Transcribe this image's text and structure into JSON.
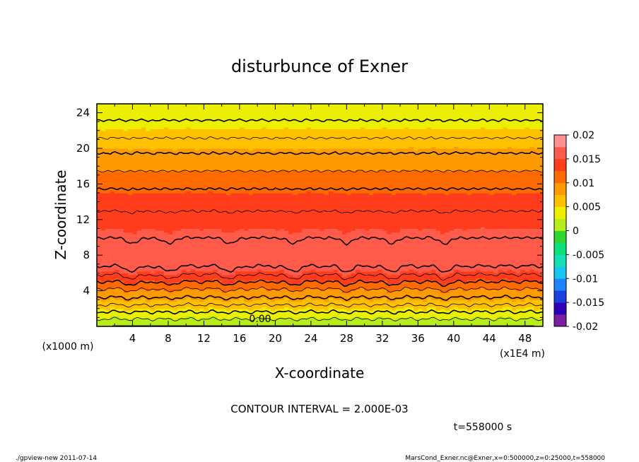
{
  "chart_data": {
    "type": "heatmap",
    "title": "disturbunce of Exner",
    "xlabel": "X-coordinate",
    "ylabel": "Z-coordinate",
    "x_unit_left": "(x1000 m)",
    "x_unit_right": "(x1E4 m)",
    "xlim": [
      0,
      50
    ],
    "ylim": [
      0,
      25
    ],
    "x_ticks": [
      4,
      8,
      12,
      16,
      20,
      24,
      28,
      32,
      36,
      40,
      44,
      48
    ],
    "y_ticks": [
      4,
      8,
      12,
      16,
      20,
      24
    ],
    "colorbar": {
      "labels": [
        "0.02",
        "0.015",
        "0.01",
        "0.005",
        "0",
        "-0.005",
        "-0.01",
        "-0.015",
        "-0.02"
      ],
      "min": -0.02,
      "max": 0.02,
      "step": 0.0025
    },
    "profile": {
      "z": [
        0,
        1,
        2,
        3,
        4,
        5,
        6,
        7,
        8,
        9,
        10,
        11,
        12,
        13,
        14,
        15,
        16,
        17,
        18,
        19,
        20,
        21,
        22,
        23,
        24,
        25
      ],
      "value": [
        0.0,
        0.0025,
        0.005,
        0.0075,
        0.0095,
        0.012,
        0.0145,
        0.0165,
        0.017,
        0.0168,
        0.016,
        0.015,
        0.0145,
        0.014,
        0.0132,
        0.0125,
        0.0115,
        0.0105,
        0.0095,
        0.0085,
        0.0075,
        0.0062,
        0.0052,
        0.0042,
        0.0032,
        0.0025
      ]
    },
    "bumps_x": [
      4,
      8,
      15,
      22,
      28,
      33,
      39
    ],
    "zero_label": "0.00",
    "contour_interval": "CONTOUR INTERVAL = 2.000E-03",
    "time_label": "t=558000 s"
  },
  "footer": {
    "left": "./gpview-new   2011-07-14",
    "right": "MarsCond_Exner.nc@Exner,x=0:500000,z=0:25000,t=558000"
  }
}
